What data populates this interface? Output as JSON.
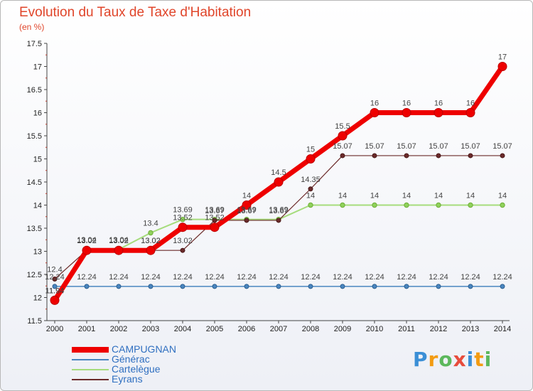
{
  "chart_data": {
    "type": "line",
    "title": "Evolution du Taux de Taxe d'Habitation",
    "unit_label": "(en %)",
    "x": [
      "2000",
      "2001",
      "2002",
      "2003",
      "2004",
      "2005",
      "2006",
      "2007",
      "2008",
      "2009",
      "2010",
      "2011",
      "2012",
      "2013",
      "2014"
    ],
    "ylim": [
      11.5,
      17.5
    ],
    "yticks": [
      11.5,
      12,
      12.5,
      13,
      13.5,
      14,
      14.5,
      15,
      15.5,
      16,
      16.5,
      17,
      17.5
    ],
    "ytick_labels": [
      "11.5",
      "12",
      "12.5",
      "13",
      "13.5",
      "14",
      "14.5",
      "15",
      "15.5",
      "16",
      "16.5",
      "17",
      "17.5"
    ],
    "grid": false,
    "series": [
      {
        "name": "Générac",
        "color": "#4a86c0",
        "values": [
          12.24,
          12.24,
          12.24,
          12.24,
          12.24,
          12.24,
          12.24,
          12.24,
          12.24,
          12.24,
          12.24,
          12.24,
          12.24,
          12.24,
          12.24
        ],
        "labels": [
          "12.24",
          "12.24",
          "12.24",
          "12.24",
          "12.24",
          "12.24",
          "12.24",
          "12.24",
          "12.24",
          "12.24",
          "12.24",
          "12.24",
          "12.24",
          "12.24",
          "12.24"
        ]
      },
      {
        "name": "Cartelègue",
        "color": "#a6dc7c",
        "values": [
          11.94,
          13.04,
          13.04,
          13.4,
          13.69,
          13.69,
          13.69,
          13.69,
          14,
          14,
          14,
          14,
          14,
          14,
          14
        ],
        "labels": [
          "11.94",
          "13.04",
          "13.04",
          "13.4",
          "13.69",
          "13.69",
          "13.69",
          "13.69",
          "14",
          "14",
          "14",
          "14",
          "14",
          "14",
          "14"
        ]
      },
      {
        "name": "Eyrans",
        "color": "#6b2a2a",
        "values": [
          12.4,
          13.02,
          13.02,
          13.02,
          13.02,
          13.67,
          13.67,
          13.67,
          14.35,
          15.07,
          15.07,
          15.07,
          15.07,
          15.07,
          15.07
        ],
        "labels": [
          "12.4",
          "13.02",
          "13.02",
          "13.02",
          "13.02",
          "13.67",
          "13.67",
          "13.67",
          "14.35",
          "15.07",
          "15.07",
          "15.07",
          "15.07",
          "15.07",
          "15.07"
        ]
      },
      {
        "name": "CAMPUGNAN",
        "color": "#ee0000",
        "values": [
          11.94,
          13.02,
          13.02,
          13.02,
          13.52,
          13.52,
          14,
          14.5,
          15,
          15.5,
          16,
          16,
          16,
          16,
          17
        ],
        "labels": [
          "11.94",
          "13.02",
          "13.02",
          "13.02",
          "13.52",
          "13.52",
          "14",
          "14.5",
          "15",
          "15.5",
          "16",
          "16",
          "16",
          "16",
          "17"
        ]
      }
    ],
    "legend": {
      "placement": "bottom-left",
      "entries": [
        {
          "name": "CAMPUGNAN",
          "color": "#ee0000"
        },
        {
          "name": "Générac",
          "color": "#4a86c0"
        },
        {
          "name": "Cartelègue",
          "color": "#a6dc7c"
        },
        {
          "name": "Eyrans",
          "color": "#6b2a2a"
        }
      ]
    }
  },
  "brand": {
    "letters": [
      "P",
      "r",
      "o",
      "x",
      "i",
      "t",
      "i"
    ],
    "colors": [
      "#3b8fd6",
      "#f39c12",
      "#5cb85c",
      "#e74c3c",
      "#3b8fd6",
      "#f39c12",
      "#5cb85c"
    ]
  }
}
